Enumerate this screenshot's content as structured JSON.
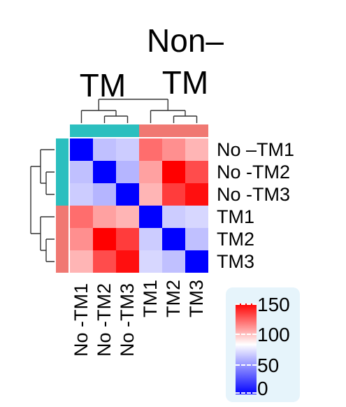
{
  "chart_data": {
    "type": "heatmap",
    "rows": [
      "No –TM1",
      "No -TM2",
      "No -TM3",
      "TM1",
      "TM2",
      "TM3"
    ],
    "columns": [
      "No -TM1",
      "No -TM2",
      "No -TM3",
      "TM1",
      "TM2",
      "TM3"
    ],
    "column_groups": [
      {
        "label": "TM",
        "color": "#2bbfbf",
        "count": 3
      },
      {
        "label": "Non–TM",
        "color": "#f07872",
        "count": 3
      }
    ],
    "row_groups": [
      {
        "color": "#2bbfbf",
        "count": 3
      },
      {
        "color": "#f07872",
        "count": 3
      }
    ],
    "values": [
      [
        0,
        50,
        55,
        115,
        105,
        95
      ],
      [
        50,
        0,
        45,
        100,
        150,
        125
      ],
      [
        55,
        45,
        0,
        95,
        130,
        145
      ],
      [
        115,
        100,
        95,
        0,
        55,
        60
      ],
      [
        105,
        150,
        130,
        55,
        0,
        50
      ],
      [
        95,
        125,
        145,
        60,
        50,
        0
      ]
    ],
    "color_scale": {
      "min": 0,
      "max": 150,
      "low": "#0000ff",
      "mid": "#ffffff",
      "high": "#ff0000",
      "mid_value": 80
    },
    "legend": {
      "ticks": [
        0,
        50,
        100,
        150
      ],
      "position": "bottom-right"
    }
  }
}
